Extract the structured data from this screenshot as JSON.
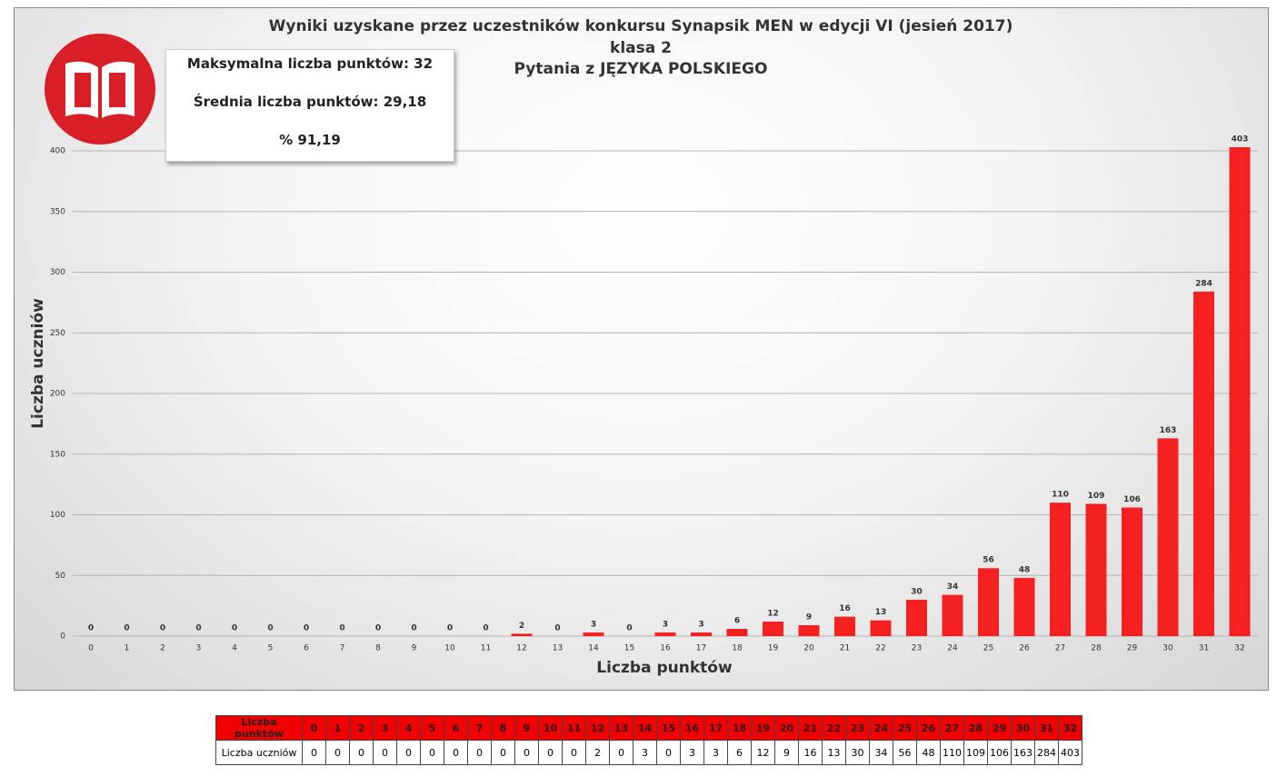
{
  "chart_data": {
    "type": "bar",
    "title_lines": [
      "Wyniki uzyskane przez uczestników konkursu Synapsik MEN w edycji VI (jesień 2017)",
      "klasa 2",
      "Pytania z JĘZYKA POLSKIEGO"
    ],
    "annotations": [
      "Maksymalna liczba punktów: 32",
      "Średnia liczba punktów: 29,18",
      "% 91,19"
    ],
    "xlabel": "Liczba punktów",
    "ylabel": "Liczba uczniów",
    "categories": [
      0,
      1,
      2,
      3,
      4,
      5,
      6,
      7,
      8,
      9,
      10,
      11,
      12,
      13,
      14,
      15,
      16,
      17,
      18,
      19,
      20,
      21,
      22,
      23,
      24,
      25,
      26,
      27,
      28,
      29,
      30,
      31,
      32
    ],
    "values": [
      0,
      0,
      0,
      0,
      0,
      0,
      0,
      0,
      0,
      0,
      0,
      0,
      2,
      0,
      3,
      0,
      3,
      3,
      6,
      12,
      9,
      16,
      13,
      30,
      34,
      56,
      48,
      110,
      109,
      106,
      163,
      284,
      403
    ],
    "color": "#f52020",
    "ylim": [
      0,
      400
    ],
    "yticks": [
      0,
      50,
      100,
      150,
      200,
      250,
      300,
      350,
      400
    ],
    "grid": true
  }
}
